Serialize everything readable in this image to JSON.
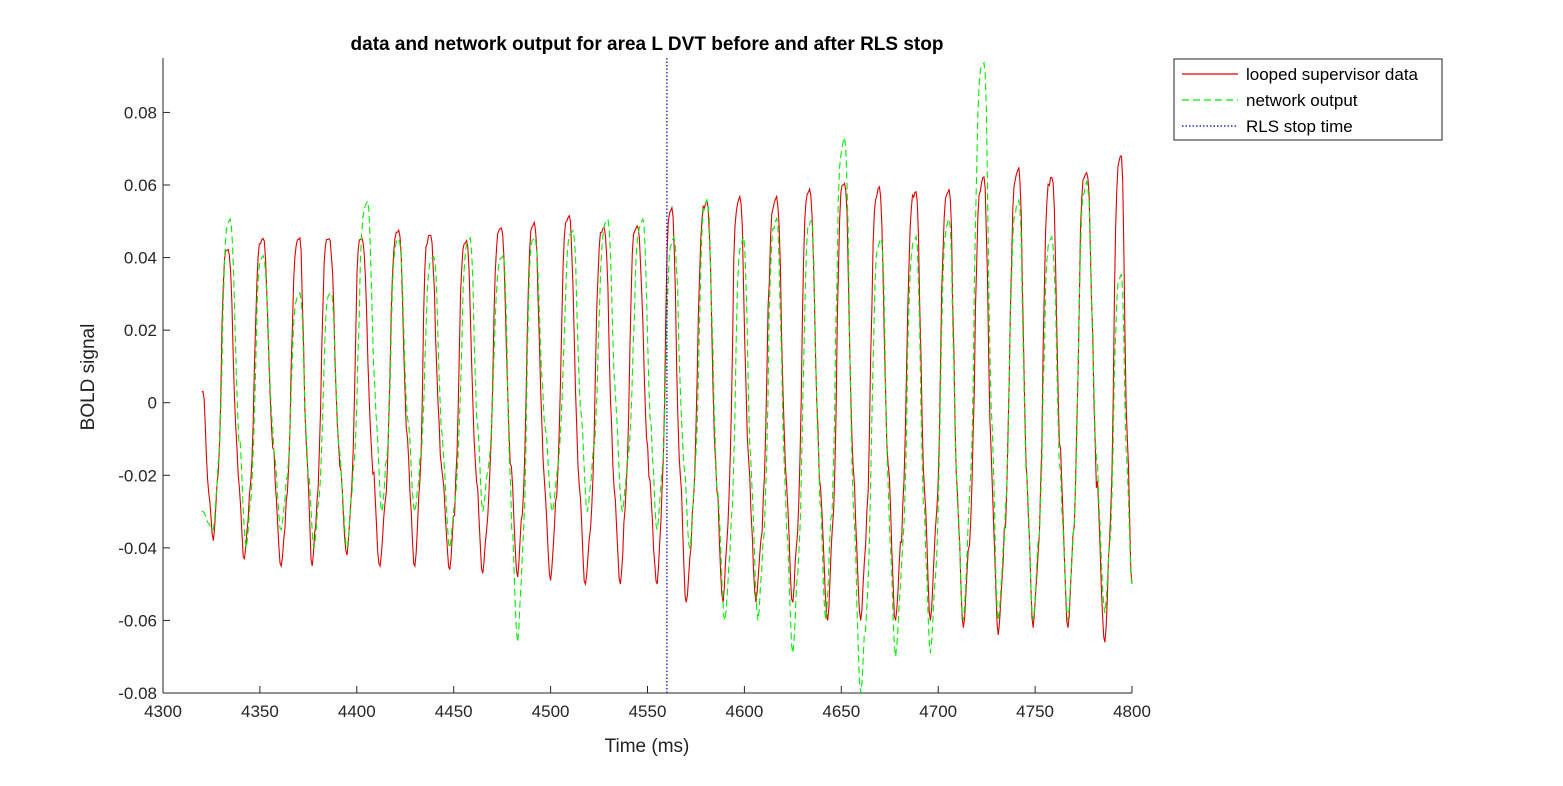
{
  "chart_data": {
    "type": "line",
    "title": "data and network output for area L DVT before and after RLS stop",
    "xlabel": "Time (ms)",
    "ylabel": "BOLD signal",
    "xlim": [
      4300,
      4800
    ],
    "ylim": [
      -0.08,
      0.095
    ],
    "xticks": [
      4300,
      4350,
      4400,
      4450,
      4500,
      4550,
      4600,
      4650,
      4700,
      4750,
      4800
    ],
    "xtick_labels": [
      "4300",
      "4350",
      "4400",
      "4450",
      "4500",
      "4550",
      "4600",
      "4650",
      "4700",
      "4750",
      "4800"
    ],
    "yticks": [
      -0.08,
      -0.06,
      -0.04,
      -0.02,
      0,
      0.02,
      0.04,
      0.06,
      0.08
    ],
    "ytick_labels": [
      "-0.08",
      "-0.06",
      "-0.04",
      "-0.02",
      "0",
      "0.02",
      "0.04",
      "0.06",
      "0.08"
    ],
    "grid": false,
    "legend_position": "outside-top-right",
    "rls_stop_time": 4560,
    "series": [
      {
        "name": "looped supervisor data",
        "color": "#e00000",
        "style": "solid",
        "x_start": 4320,
        "x_end": 4800,
        "period": 14.4,
        "peaks": [
          [
            4333,
            0.042
          ],
          [
            4351,
            0.045
          ],
          [
            4370,
            0.045
          ],
          [
            4385,
            0.045
          ],
          [
            4402,
            0.045
          ],
          [
            4421,
            0.047
          ],
          [
            4437,
            0.046
          ],
          [
            4456,
            0.044
          ],
          [
            4474,
            0.048
          ],
          [
            4491,
            0.049
          ],
          [
            4509,
            0.051
          ],
          [
            4527,
            0.048
          ],
          [
            4544,
            0.048
          ],
          [
            4562,
            0.053
          ],
          [
            4580,
            0.055
          ],
          [
            4597,
            0.056
          ],
          [
            4616,
            0.056
          ],
          [
            4633,
            0.058
          ],
          [
            4651,
            0.06
          ],
          [
            4669,
            0.059
          ],
          [
            4688,
            0.058
          ],
          [
            4705,
            0.058
          ],
          [
            4723,
            0.062
          ],
          [
            4741,
            0.064
          ],
          [
            4758,
            0.062
          ],
          [
            4776,
            0.063
          ],
          [
            4794,
            0.068
          ]
        ],
        "troughs": [
          [
            4326,
            -0.038
          ],
          [
            4342,
            -0.043
          ],
          [
            4361,
            -0.045
          ],
          [
            4377,
            -0.045
          ],
          [
            4395,
            -0.042
          ],
          [
            4412,
            -0.045
          ],
          [
            4430,
            -0.045
          ],
          [
            4448,
            -0.046
          ],
          [
            4465,
            -0.047
          ],
          [
            4483,
            -0.048
          ],
          [
            4500,
            -0.049
          ],
          [
            4518,
            -0.05
          ],
          [
            4536,
            -0.05
          ],
          [
            4555,
            -0.05
          ],
          [
            4570,
            -0.055
          ],
          [
            4589,
            -0.055
          ],
          [
            4606,
            -0.055
          ],
          [
            4625,
            -0.055
          ],
          [
            4643,
            -0.06
          ],
          [
            4660,
            -0.06
          ],
          [
            4678,
            -0.06
          ],
          [
            4696,
            -0.06
          ],
          [
            4713,
            -0.062
          ],
          [
            4731,
            -0.064
          ],
          [
            4749,
            -0.062
          ],
          [
            4767,
            -0.062
          ],
          [
            4786,
            -0.066
          ]
        ]
      },
      {
        "name": "network output",
        "color": "#00ee00",
        "style": "dashed",
        "x_start": 4320,
        "x_end": 4800,
        "period": 14.4,
        "peaks": [
          [
            4334,
            0.05
          ],
          [
            4351,
            0.04
          ],
          [
            4370,
            0.03
          ],
          [
            4386,
            0.03
          ],
          [
            4405,
            0.055
          ],
          [
            4421,
            0.045
          ],
          [
            4439,
            0.04
          ],
          [
            4458,
            0.045
          ],
          [
            4475,
            0.04
          ],
          [
            4491,
            0.045
          ],
          [
            4511,
            0.047
          ],
          [
            4529,
            0.05
          ],
          [
            4547,
            0.05
          ],
          [
            4563,
            0.045
          ],
          [
            4580,
            0.055
          ],
          [
            4599,
            0.045
          ],
          [
            4616,
            0.05
          ],
          [
            4634,
            0.05
          ],
          [
            4651,
            0.072
          ],
          [
            4670,
            0.045
          ],
          [
            4688,
            0.045
          ],
          [
            4705,
            0.05
          ],
          [
            4723,
            0.093
          ],
          [
            4741,
            0.055
          ],
          [
            4758,
            0.045
          ],
          [
            4776,
            0.06
          ],
          [
            4794,
            0.035
          ]
        ],
        "troughs": [
          [
            4326,
            -0.035
          ],
          [
            4343,
            -0.04
          ],
          [
            4361,
            -0.035
          ],
          [
            4378,
            -0.04
          ],
          [
            4395,
            -0.04
          ],
          [
            4413,
            -0.03
          ],
          [
            4430,
            -0.03
          ],
          [
            4448,
            -0.04
          ],
          [
            4465,
            -0.03
          ],
          [
            4483,
            -0.066
          ],
          [
            4501,
            -0.03
          ],
          [
            4519,
            -0.03
          ],
          [
            4537,
            -0.03
          ],
          [
            4555,
            -0.035
          ],
          [
            4572,
            -0.04
          ],
          [
            4590,
            -0.06
          ],
          [
            4607,
            -0.06
          ],
          [
            4625,
            -0.069
          ],
          [
            4642,
            -0.06
          ],
          [
            4660,
            -0.08
          ],
          [
            4678,
            -0.07
          ],
          [
            4696,
            -0.069
          ],
          [
            4713,
            -0.06
          ],
          [
            4731,
            -0.06
          ],
          [
            4749,
            -0.06
          ],
          [
            4767,
            -0.06
          ],
          [
            4786,
            -0.058
          ]
        ]
      },
      {
        "name": "RLS stop time",
        "color": "#0000cc",
        "style": "dotted",
        "x": [
          4560,
          4560
        ],
        "y": [
          -0.08,
          0.095
        ]
      }
    ]
  }
}
